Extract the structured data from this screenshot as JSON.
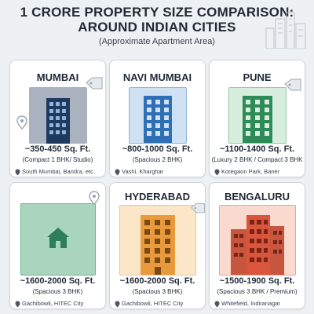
{
  "header": {
    "title_line1": "1 CRORE PROPERTY SIZE COMPARISON:",
    "title_line2": "AROUND INDIAN CITIES",
    "subtitle": "(Approximate Apartment Area)"
  },
  "cards": [
    {
      "city": "MUMBAI",
      "range": "~350-450 Sq. Ft.",
      "type": "(Compact 1 BHK/ Studio)",
      "location": "South Mumbai, Bandra, etc.",
      "color": "#1e3a5f",
      "bg": "#a9b2be"
    },
    {
      "city": "NAVI MUMBAI",
      "range": "~800-1000 Sq. Ft.",
      "type": "(Spacious 2 BHK)",
      "location": "Vashi, Kharghar",
      "color": "#2f6fb5",
      "bg": "#cfe1f3"
    },
    {
      "city": "PUNE",
      "range": "~1100-1400 Sq. Ft.",
      "type": "(Luxury 2 BHK / Compact 3 BHK",
      "location": "Koregaon Park, Baner",
      "color": "#2e8b57",
      "bg": "#d7eedf"
    },
    {
      "city": "",
      "range": "~1600-2000 Sq. Ft.",
      "type": "(Spacious 3 BHK)",
      "location": "Gachibowli, HITEC City",
      "color": "#2e7d5b",
      "bg": "#a9d5bf"
    },
    {
      "city": "HYDERABAD",
      "range": "~1600-2000 Sq. Ft.",
      "type": "(Spacious 3 BHK)",
      "location": "Gachibowli, HITEC City",
      "color": "#e89a3c",
      "bg": "#fbe6c8"
    },
    {
      "city": "BENGALURU",
      "range": "~1500-1900 Sq. Ft.",
      "type": "(Spacious 3 BHK / Premium)",
      "location": "Whitefield, Indiranagar",
      "color": "#d9553b",
      "bg": "#fad9cf"
    }
  ],
  "icons": {
    "tag": "price-tag-icon",
    "pin": "location-pin-icon",
    "home": "home-icon",
    "skyline": "city-skyline-icon"
  }
}
